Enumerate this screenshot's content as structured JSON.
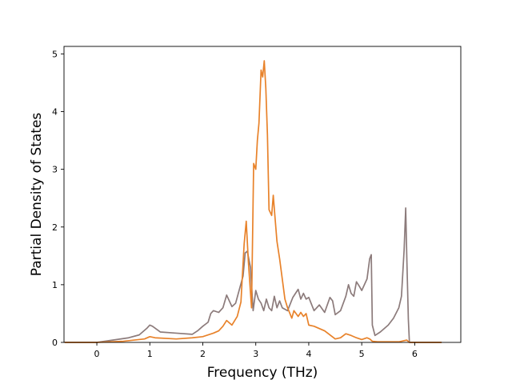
{
  "chart_data": {
    "type": "line",
    "title": "",
    "xlabel": "Frequency (THz)",
    "ylabel": "Partial Density of States",
    "xlim": [
      -0.62,
      6.87
    ],
    "ylim": [
      0,
      5.13
    ],
    "xticks": [
      0,
      1,
      2,
      3,
      4,
      5,
      6
    ],
    "yticks": [
      0,
      1,
      2,
      3,
      4,
      5
    ],
    "grid": false,
    "legend": "none",
    "series": [
      {
        "color": "#8c7b7b",
        "x": [
          -0.6,
          0.0,
          0.3,
          0.6,
          0.8,
          0.95,
          1.0,
          1.05,
          1.2,
          1.5,
          1.8,
          1.9,
          2.0,
          2.1,
          2.15,
          2.2,
          2.3,
          2.38,
          2.45,
          2.55,
          2.62,
          2.7,
          2.76,
          2.8,
          2.84,
          2.9,
          2.95,
          3.0,
          3.05,
          3.1,
          3.15,
          3.2,
          3.25,
          3.3,
          3.35,
          3.4,
          3.45,
          3.5,
          3.6,
          3.7,
          3.8,
          3.85,
          3.9,
          3.95,
          4.0,
          4.1,
          4.2,
          4.3,
          4.4,
          4.45,
          4.5,
          4.6,
          4.7,
          4.75,
          4.8,
          4.85,
          4.9,
          4.95,
          5.0,
          5.05,
          5.1,
          5.15,
          5.18,
          5.2,
          5.25,
          5.35,
          5.5,
          5.6,
          5.7,
          5.75,
          5.8,
          5.83,
          5.85,
          5.88,
          5.9,
          6.0,
          6.5
        ],
        "values": [
          0.0,
          0.0,
          0.04,
          0.08,
          0.13,
          0.25,
          0.3,
          0.28,
          0.18,
          0.16,
          0.14,
          0.2,
          0.28,
          0.35,
          0.5,
          0.55,
          0.52,
          0.6,
          0.82,
          0.62,
          0.68,
          0.95,
          1.15,
          1.55,
          1.58,
          1.3,
          0.55,
          0.9,
          0.75,
          0.68,
          0.55,
          0.75,
          0.6,
          0.55,
          0.8,
          0.6,
          0.72,
          0.6,
          0.55,
          0.78,
          0.92,
          0.75,
          0.85,
          0.75,
          0.78,
          0.55,
          0.65,
          0.52,
          0.78,
          0.72,
          0.48,
          0.55,
          0.8,
          1.0,
          0.85,
          0.8,
          1.05,
          0.98,
          0.9,
          1.0,
          1.1,
          1.45,
          1.52,
          0.3,
          0.12,
          0.18,
          0.3,
          0.42,
          0.6,
          0.8,
          1.6,
          2.33,
          1.5,
          0.4,
          0.0,
          0.0,
          0.0
        ]
      },
      {
        "color": "#e8822a",
        "x": [
          -0.6,
          0.0,
          0.5,
          0.9,
          1.0,
          1.1,
          1.5,
          1.8,
          2.0,
          2.2,
          2.3,
          2.38,
          2.45,
          2.55,
          2.65,
          2.72,
          2.78,
          2.82,
          2.86,
          2.92,
          2.96,
          3.0,
          3.03,
          3.06,
          3.1,
          3.13,
          3.16,
          3.19,
          3.22,
          3.25,
          3.3,
          3.33,
          3.36,
          3.4,
          3.45,
          3.5,
          3.55,
          3.6,
          3.68,
          3.72,
          3.8,
          3.85,
          3.9,
          3.95,
          4.0,
          4.1,
          4.3,
          4.5,
          4.6,
          4.7,
          4.8,
          4.9,
          5.0,
          5.1,
          5.15,
          5.2,
          5.3,
          5.7,
          5.85,
          5.9,
          6.5
        ],
        "values": [
          0.0,
          0.0,
          0.02,
          0.06,
          0.1,
          0.08,
          0.06,
          0.08,
          0.1,
          0.16,
          0.2,
          0.28,
          0.38,
          0.3,
          0.45,
          0.7,
          1.7,
          2.1,
          1.4,
          0.6,
          3.1,
          3.0,
          3.5,
          3.8,
          4.72,
          4.6,
          4.88,
          4.4,
          3.6,
          2.3,
          2.2,
          2.55,
          2.2,
          1.75,
          1.45,
          1.1,
          0.75,
          0.6,
          0.42,
          0.55,
          0.45,
          0.52,
          0.45,
          0.5,
          0.3,
          0.28,
          0.2,
          0.06,
          0.08,
          0.15,
          0.12,
          0.08,
          0.05,
          0.08,
          0.06,
          0.02,
          0.01,
          0.01,
          0.04,
          0.0,
          0.0
        ]
      }
    ]
  }
}
